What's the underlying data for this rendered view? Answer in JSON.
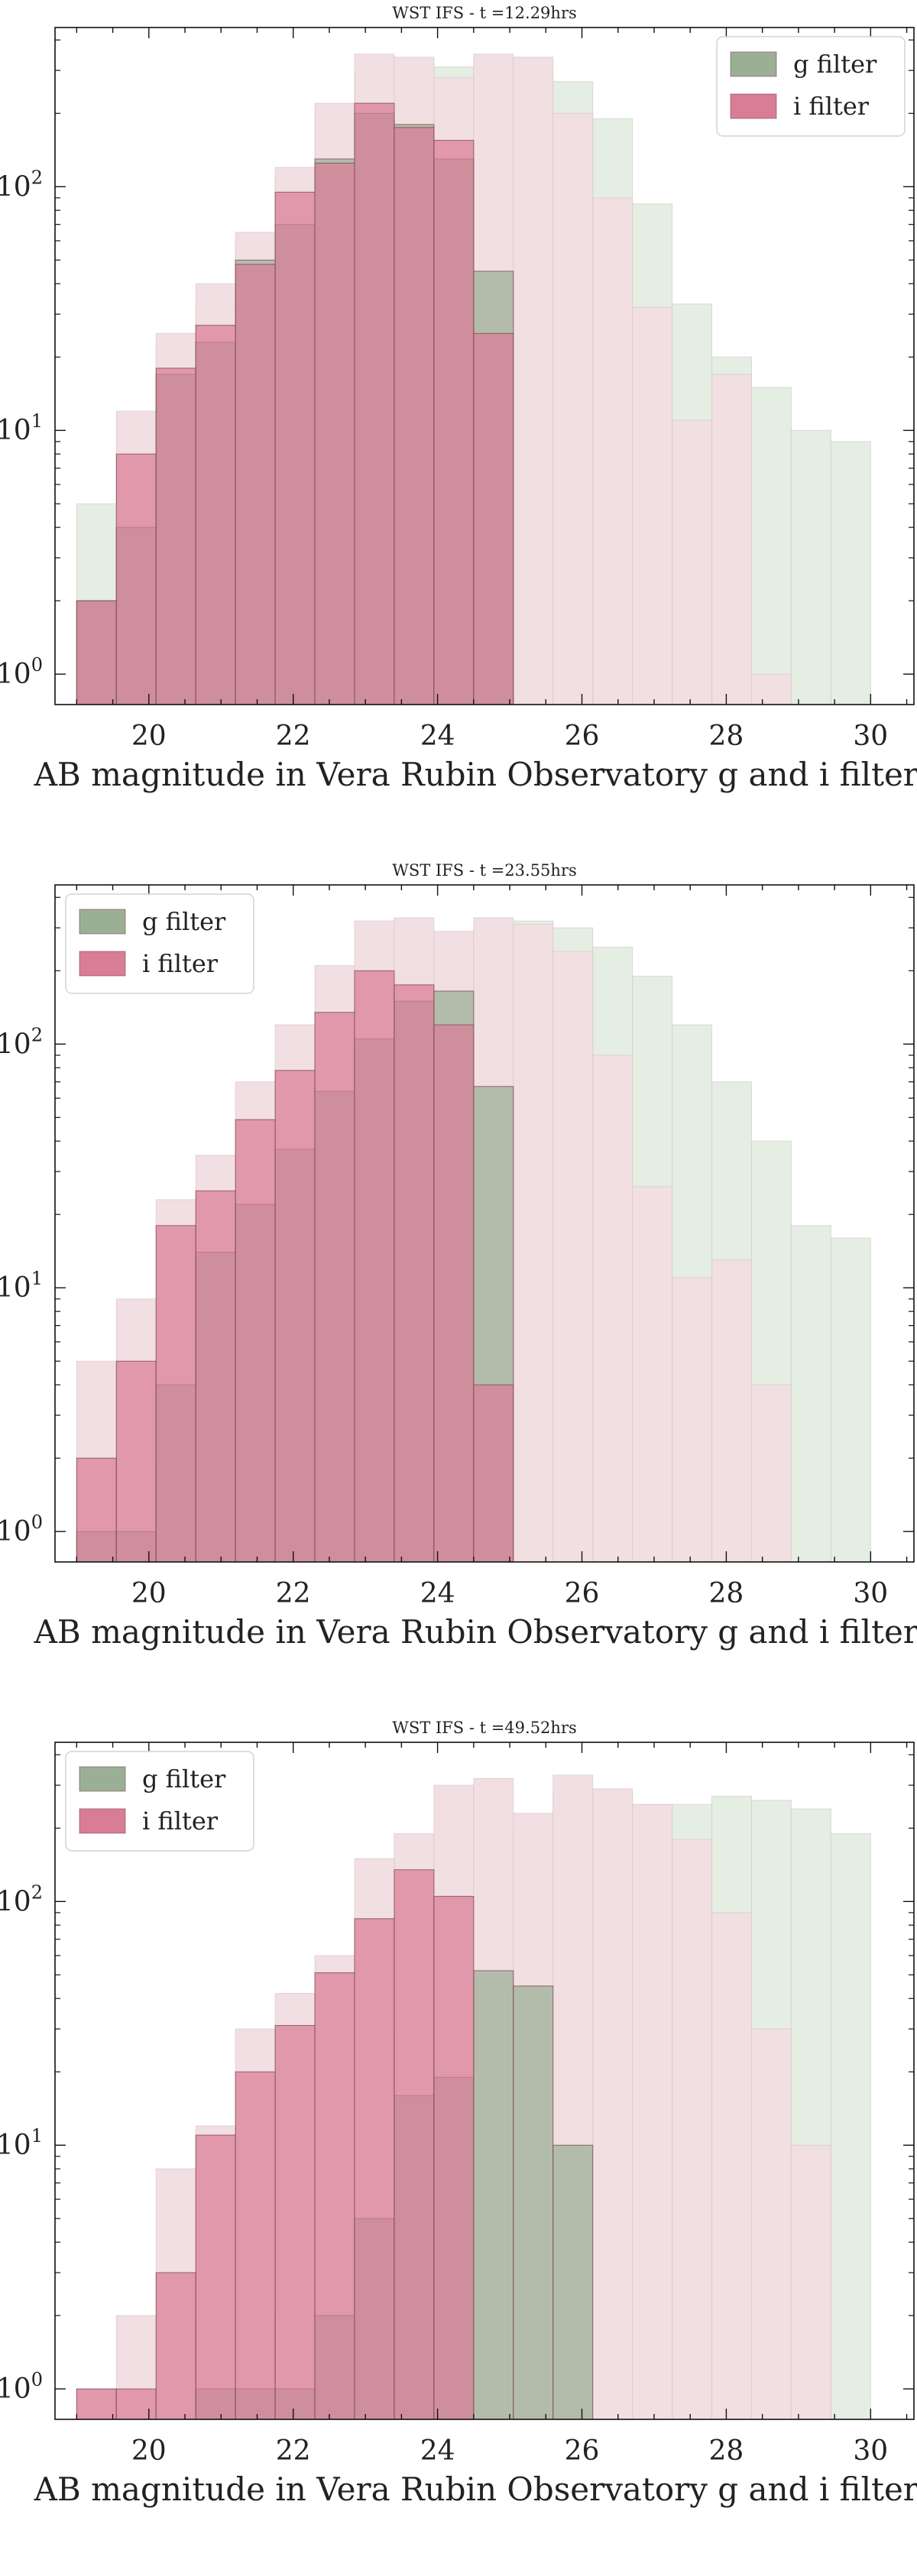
{
  "chart_data": [
    {
      "type": "bar",
      "title": "WST IFS - t =12.29hrs",
      "xlabel": "AB magnitude in Vera Rubin Observatory g and i filters",
      "ylabel": "",
      "yscale": "log",
      "xlim": [
        18.7,
        30.6
      ],
      "ylim": [
        0.75,
        450
      ],
      "xticks": [
        "20",
        "22",
        "24",
        "26",
        "28",
        "30"
      ],
      "yticks": [
        "10^0",
        "10^1",
        "10^2"
      ],
      "legend": {
        "position": "top-right",
        "entries": [
          "g filter",
          "i filter"
        ]
      },
      "bin_edges": [
        19.0,
        19.55,
        20.1,
        20.65,
        21.2,
        21.75,
        22.3,
        22.85,
        23.4,
        23.95,
        24.5,
        25.05,
        25.6,
        26.15,
        26.7,
        27.25,
        27.8,
        28.35,
        28.9,
        29.45,
        30.0
      ],
      "series": [
        {
          "name": "g filter",
          "role": "total",
          "color": "#e3ede2",
          "values": [
            5,
            8,
            22,
            32,
            58,
            110,
            200,
            300,
            330,
            310,
            320,
            300,
            270,
            190,
            85,
            33,
            20,
            15,
            10,
            9
          ]
        },
        {
          "name": "i filter",
          "role": "total",
          "color": "#f1dde1",
          "values": [
            2,
            12,
            25,
            40,
            65,
            120,
            220,
            350,
            340,
            280,
            350,
            340,
            200,
            90,
            32,
            11,
            17,
            1,
            0,
            0
          ]
        },
        {
          "name": "g filter",
          "role": "detected",
          "color": "#9baf95",
          "values": [
            2,
            4,
            17,
            23,
            50,
            70,
            130,
            200,
            180,
            130,
            45,
            0,
            0,
            0,
            0,
            0,
            0,
            0,
            0,
            0
          ]
        },
        {
          "name": "i filter",
          "role": "detected",
          "color": "#d97d94",
          "values": [
            2,
            8,
            18,
            27,
            48,
            95,
            125,
            220,
            175,
            155,
            25,
            0,
            0,
            0,
            0,
            0,
            0,
            0,
            0,
            0
          ]
        }
      ]
    },
    {
      "type": "bar",
      "title": "WST IFS - t =23.55hrs",
      "xlabel": "AB magnitude in Vera Rubin Observatory g and i filters",
      "ylabel": "",
      "yscale": "log",
      "xlim": [
        18.7,
        30.6
      ],
      "ylim": [
        0.75,
        450
      ],
      "xticks": [
        "20",
        "22",
        "24",
        "26",
        "28",
        "30"
      ],
      "yticks": [
        "10^0",
        "10^1",
        "10^2"
      ],
      "legend": {
        "position": "top-left",
        "entries": [
          "g filter",
          "i filter"
        ]
      },
      "bin_edges": [
        19.0,
        19.55,
        20.1,
        20.65,
        21.2,
        21.75,
        22.3,
        22.85,
        23.4,
        23.95,
        24.5,
        25.05,
        25.6,
        26.15,
        26.7,
        27.25,
        27.8,
        28.35,
        28.9,
        29.45,
        30.0
      ],
      "series": [
        {
          "name": "g filter",
          "role": "total",
          "color": "#e3ede2",
          "values": [
            1,
            2,
            7,
            15,
            25,
            40,
            65,
            110,
            190,
            260,
            300,
            320,
            300,
            250,
            190,
            120,
            70,
            40,
            18,
            16
          ]
        },
        {
          "name": "i filter",
          "role": "total",
          "color": "#f1dde1",
          "values": [
            5,
            9,
            23,
            35,
            70,
            120,
            210,
            320,
            330,
            290,
            330,
            310,
            240,
            90,
            26,
            11,
            13,
            4,
            0,
            0
          ]
        },
        {
          "name": "g filter",
          "role": "detected",
          "color": "#9baf95",
          "values": [
            1,
            1,
            4,
            14,
            22,
            37,
            64,
            105,
            150,
            165,
            67,
            0,
            0,
            0,
            0,
            0,
            0,
            0,
            0,
            0
          ]
        },
        {
          "name": "i filter",
          "role": "detected",
          "color": "#d97d94",
          "values": [
            2,
            5,
            18,
            25,
            49,
            78,
            135,
            200,
            175,
            120,
            4,
            0,
            0,
            0,
            0,
            0,
            0,
            0,
            0,
            0
          ]
        }
      ]
    },
    {
      "type": "bar",
      "title": "WST IFS - t =49.52hrs",
      "xlabel": "AB magnitude in Vera Rubin Observatory g and i filters",
      "ylabel": "",
      "yscale": "log",
      "xlim": [
        18.7,
        30.6
      ],
      "ylim": [
        0.75,
        450
      ],
      "xticks": [
        "20",
        "22",
        "24",
        "26",
        "28",
        "30"
      ],
      "yticks": [
        "10^0",
        "10^1",
        "10^2"
      ],
      "legend": {
        "position": "top-left",
        "entries": [
          "g filter",
          "i filter"
        ]
      },
      "bin_edges": [
        19.0,
        19.55,
        20.1,
        20.65,
        21.2,
        21.75,
        22.3,
        22.85,
        23.4,
        23.95,
        24.5,
        25.05,
        25.6,
        26.15,
        26.7,
        27.25,
        27.8,
        28.35,
        28.9,
        29.45,
        30.0
      ],
      "series": [
        {
          "name": "g filter",
          "role": "total",
          "color": "#e3ede2",
          "values": [
            0,
            0,
            1,
            2,
            2,
            3,
            8,
            13,
            28,
            50,
            90,
            200,
            280,
            280,
            250,
            250,
            270,
            260,
            240,
            190
          ]
        },
        {
          "name": "i filter",
          "role": "total",
          "color": "#f1dde1",
          "values": [
            1,
            2,
            8,
            12,
            30,
            42,
            60,
            150,
            190,
            300,
            320,
            230,
            330,
            290,
            250,
            180,
            90,
            30,
            10,
            0
          ]
        },
        {
          "name": "g filter",
          "role": "detected",
          "color": "#9baf95",
          "values": [
            0,
            0,
            0,
            1,
            1,
            1,
            2,
            5,
            16,
            19,
            52,
            45,
            10,
            0,
            0,
            0,
            0,
            0,
            0,
            0
          ]
        },
        {
          "name": "i filter",
          "role": "detected",
          "color": "#d97d94",
          "values": [
            1,
            1,
            3,
            11,
            20,
            31,
            51,
            85,
            135,
            105,
            0,
            0,
            0,
            0,
            0,
            0,
            0,
            0,
            0,
            0
          ]
        }
      ]
    }
  ]
}
